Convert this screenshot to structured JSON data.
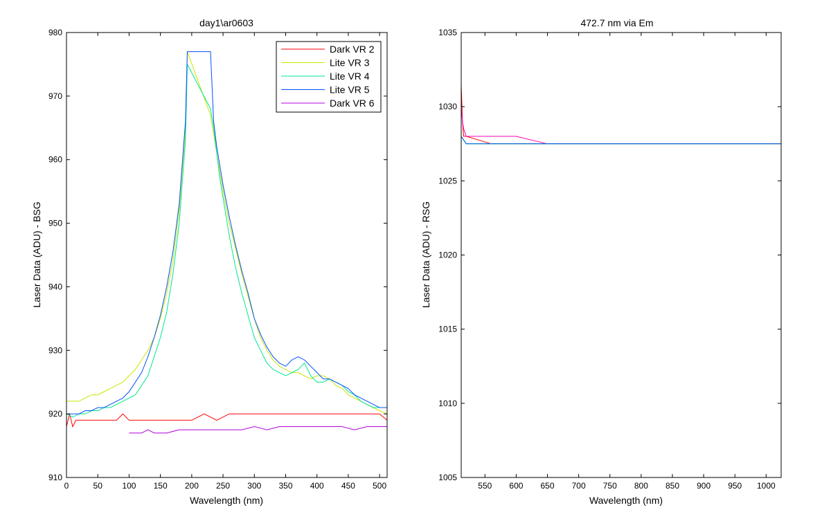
{
  "chart_data": [
    {
      "type": "line",
      "title": "day1\\ar0603",
      "xlabel": "Wavelength (nm)",
      "ylabel": "Laser Data (ADU) - BSG",
      "xlim": [
        0,
        512
      ],
      "ylim": [
        910,
        980
      ],
      "xticks": [
        0,
        50,
        100,
        150,
        200,
        250,
        300,
        350,
        400,
        450,
        500
      ],
      "yticks": [
        910,
        920,
        930,
        940,
        950,
        960,
        970,
        980
      ],
      "legend_position": "top-right",
      "series": [
        {
          "name": "Dark VR 2",
          "color": "#ff0000",
          "x": [
            0,
            5,
            10,
            15,
            20,
            30,
            40,
            50,
            60,
            70,
            80,
            90,
            100,
            120,
            140,
            160,
            180,
            200,
            220,
            240,
            260,
            280,
            300,
            320,
            340,
            360,
            380,
            400,
            420,
            440,
            460,
            480,
            500,
            512
          ],
          "values": [
            918,
            920,
            918,
            919,
            919,
            919,
            919,
            919,
            919,
            919,
            919,
            920,
            919,
            919,
            919,
            919,
            919,
            919,
            920,
            919,
            920,
            920,
            920,
            920,
            920,
            920,
            920,
            920,
            920,
            920,
            920,
            920,
            920,
            919
          ]
        },
        {
          "name": "Lite VR 3",
          "color": "#c8e600",
          "x": [
            0,
            10,
            20,
            30,
            40,
            50,
            60,
            70,
            80,
            90,
            100,
            110,
            120,
            130,
            140,
            150,
            160,
            170,
            180,
            190,
            193,
            230,
            235,
            240,
            245,
            250,
            260,
            270,
            280,
            290,
            300,
            310,
            320,
            330,
            340,
            350,
            360,
            370,
            380,
            390,
            400,
            410,
            420,
            430,
            440,
            450,
            460,
            470,
            480,
            490,
            500,
            512
          ],
          "values": [
            922,
            922,
            922,
            922.5,
            923,
            923,
            923.5,
            924,
            924.5,
            925,
            926,
            927,
            928.5,
            930,
            932,
            935,
            939,
            944,
            952,
            965,
            977,
            967,
            964,
            961,
            958,
            955,
            950,
            946,
            942,
            938.5,
            935,
            932,
            930,
            928.5,
            927.5,
            927,
            926.5,
            926.5,
            926,
            925.5,
            926,
            926,
            925.5,
            924.5,
            924,
            923,
            922.5,
            922,
            921.5,
            921,
            920.5,
            920
          ]
        },
        {
          "name": "Lite VR 4",
          "color": "#00e68c",
          "x": [
            0,
            10,
            20,
            30,
            40,
            50,
            60,
            70,
            80,
            90,
            100,
            110,
            120,
            130,
            140,
            150,
            160,
            170,
            180,
            190,
            193,
            230,
            235,
            240,
            245,
            250,
            260,
            270,
            280,
            290,
            300,
            310,
            320,
            330,
            340,
            350,
            360,
            370,
            380,
            390,
            400,
            410,
            420,
            430,
            440,
            450,
            460,
            470,
            480,
            490,
            500,
            512
          ],
          "values": [
            920,
            919.5,
            920,
            920,
            920.5,
            920.5,
            921,
            921,
            921.5,
            922,
            922.5,
            923,
            924.5,
            926,
            929,
            932,
            936,
            942,
            950,
            963,
            975,
            968,
            965,
            961,
            957,
            954,
            948,
            943,
            939,
            935.5,
            932,
            930,
            928,
            927,
            926.5,
            926,
            926.5,
            927,
            928,
            926,
            925,
            925,
            925.5,
            925,
            924.5,
            923.5,
            923,
            922,
            921.5,
            921,
            921,
            921
          ]
        },
        {
          "name": "Lite VR 5",
          "color": "#0050ff",
          "x": [
            0,
            10,
            20,
            30,
            40,
            50,
            60,
            70,
            80,
            90,
            100,
            110,
            120,
            130,
            140,
            150,
            160,
            170,
            180,
            190,
            193,
            230,
            235,
            240,
            245,
            250,
            260,
            270,
            280,
            290,
            300,
            310,
            320,
            330,
            340,
            350,
            360,
            370,
            380,
            390,
            400,
            410,
            420,
            430,
            440,
            450,
            460,
            470,
            480,
            490,
            500,
            512
          ],
          "values": [
            920,
            920,
            920,
            920.5,
            920.5,
            921,
            921,
            921.5,
            922,
            922.5,
            923.5,
            925,
            926.5,
            929,
            932,
            935.5,
            940,
            945.5,
            953,
            966,
            977,
            977,
            966,
            962,
            959,
            956,
            951,
            946.5,
            942.5,
            939,
            935,
            932.5,
            930.5,
            929,
            928,
            927.5,
            928.5,
            929,
            928.5,
            927.5,
            926.5,
            925.5,
            925.5,
            925,
            924.5,
            924,
            923,
            922.5,
            922,
            921.5,
            921,
            921
          ]
        },
        {
          "name": "Dark VR 6",
          "color": "#b400dc",
          "x": [
            100,
            110,
            120,
            130,
            140,
            160,
            180,
            200,
            220,
            240,
            260,
            280,
            300,
            320,
            340,
            360,
            380,
            400,
            420,
            440,
            460,
            480,
            500,
            512
          ],
          "values": [
            917,
            917,
            917,
            917.5,
            917,
            917,
            917.5,
            917.5,
            917.5,
            917.5,
            917.5,
            917.5,
            918,
            917.5,
            918,
            918,
            918,
            918,
            918,
            918,
            917.5,
            918,
            918,
            918
          ]
        }
      ]
    },
    {
      "type": "line",
      "title": "472.7 nm via Em",
      "xlabel": "Wavelength (nm)",
      "ylabel": "Laser Data (ADU) - RSG",
      "xlim": [
        512,
        1024
      ],
      "ylim": [
        1005,
        1035
      ],
      "xticks": [
        550,
        600,
        650,
        700,
        750,
        800,
        850,
        900,
        950,
        1000
      ],
      "yticks": [
        1005,
        1010,
        1015,
        1020,
        1025,
        1030,
        1035
      ],
      "series": [
        {
          "color": "#ff0000",
          "x": [
            512,
            514,
            516,
            520,
            560,
            600,
            650,
            700,
            750,
            800,
            850,
            900,
            950,
            1000,
            1024
          ],
          "values": [
            1031.5,
            1029,
            1028,
            1028,
            1027.5,
            1027.5,
            1027.5,
            1027.5,
            1027.5,
            1027.5,
            1027.5,
            1027.5,
            1027.5,
            1027.5,
            1027.5
          ]
        },
        {
          "color": "#ff00b4",
          "x": [
            512,
            514,
            516,
            520,
            560,
            600,
            650,
            700,
            750,
            800,
            850,
            900,
            950,
            1000,
            1024
          ],
          "values": [
            1030,
            1029,
            1028.5,
            1028,
            1028,
            1028,
            1027.5,
            1027.5,
            1027.5,
            1027.5,
            1027.5,
            1027.5,
            1027.5,
            1027.5,
            1027.5
          ]
        },
        {
          "color": "#c8e600",
          "x": [
            512,
            520,
            560,
            600,
            650,
            700,
            750,
            800,
            850,
            900,
            950,
            1000,
            1024
          ],
          "values": [
            1028,
            1027.5,
            1027.5,
            1027.5,
            1027.5,
            1027.5,
            1027.5,
            1027.5,
            1027.5,
            1027.5,
            1027.5,
            1027.5,
            1027.5
          ]
        },
        {
          "color": "#00e68c",
          "x": [
            512,
            520,
            560,
            600,
            650,
            700,
            750,
            800,
            850,
            900,
            950,
            1000,
            1024
          ],
          "values": [
            1028,
            1027.5,
            1027.5,
            1027.5,
            1027.5,
            1027.5,
            1027.5,
            1027.5,
            1027.5,
            1027.5,
            1027.5,
            1027.5,
            1027.5
          ]
        },
        {
          "color": "#0050ff",
          "x": [
            512,
            520,
            560,
            600,
            650,
            700,
            750,
            800,
            850,
            900,
            950,
            1000,
            1024
          ],
          "values": [
            1028,
            1027.5,
            1027.5,
            1027.5,
            1027.5,
            1027.5,
            1027.5,
            1027.5,
            1027.5,
            1027.5,
            1027.5,
            1027.5,
            1027.5
          ]
        }
      ]
    }
  ]
}
